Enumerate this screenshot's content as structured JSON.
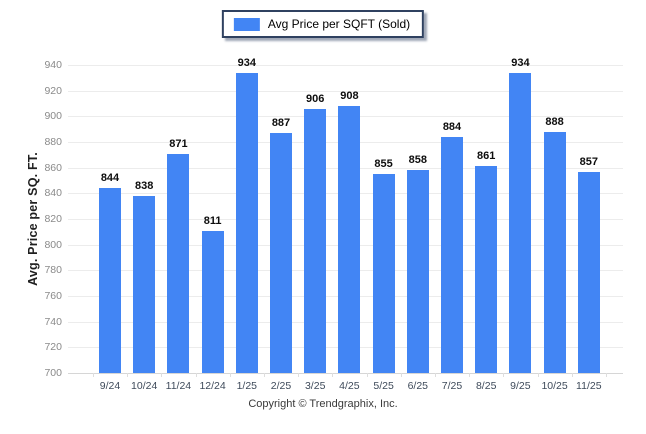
{
  "legend": {
    "label": "Avg Price per SQFT (Sold)",
    "swatch_color": "#4285f4"
  },
  "y_axis": {
    "title": "Avg. Price per SQ. FT.",
    "ticks": [
      700,
      720,
      740,
      760,
      780,
      800,
      820,
      840,
      860,
      880,
      900,
      920,
      940
    ]
  },
  "footer": {
    "copyright": "Copyright © Trendgraphix, Inc."
  },
  "colors": {
    "bar": "#4285f4",
    "legend_border": "#2f4160",
    "gridline": "#ececec"
  },
  "chart_data": {
    "type": "bar",
    "title": "",
    "categories": [
      "9/24",
      "10/24",
      "11/24",
      "12/24",
      "1/25",
      "2/25",
      "3/25",
      "4/25",
      "5/25",
      "6/25",
      "7/25",
      "8/25",
      "9/25",
      "10/25",
      "11/25"
    ],
    "values": [
      844,
      838,
      871,
      811,
      934,
      887,
      906,
      908,
      855,
      858,
      884,
      861,
      934,
      888,
      857
    ],
    "xlabel": "",
    "ylabel": "Avg. Price per SQ. FT.",
    "ylim": [
      700,
      940
    ],
    "ytick_step": 20,
    "legend_entries": [
      "Avg Price per SQFT (Sold)"
    ],
    "legend_position": "top",
    "grid": true,
    "data_labels": true
  }
}
